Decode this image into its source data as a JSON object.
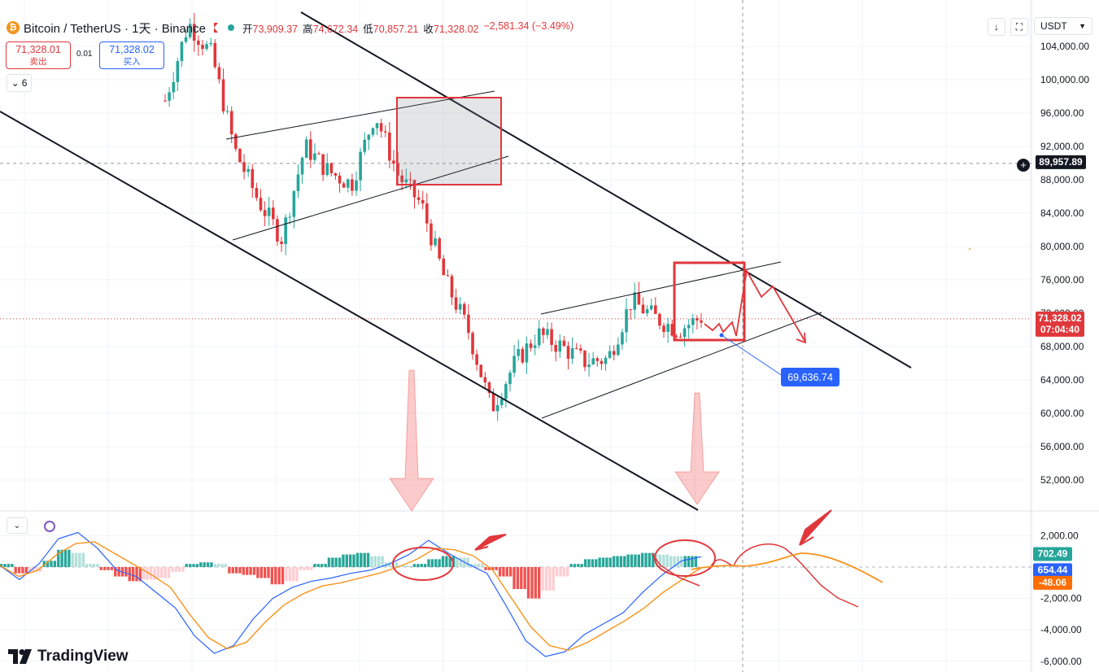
{
  "header": {
    "symbol": "Bitcoin / TetherUS · 1天 · Binance",
    "coin_glyph": "₿",
    "open_label": "开",
    "open": "73,909.37",
    "high_label": "高",
    "high": "74,672.34",
    "low_label": "低",
    "low": "70,857.21",
    "close_label": "收",
    "close": "71,328.02",
    "change": "−2,581.34 (−3.49%)"
  },
  "trade": {
    "sell_price": "71,328.01",
    "sell_label": "卖出",
    "spread": "0.01",
    "buy_price": "71,328.02",
    "buy_label": "买入"
  },
  "indicators_count": "6",
  "currency": "USDT",
  "brand": "TradingView",
  "colors": {
    "up": "#26a69a",
    "down": "#e0373b",
    "macd": "#2962ff",
    "signal": "#f7931a",
    "annotation": "#e0373b",
    "blue_label": "#2962ff"
  },
  "chart_data": [
    {
      "type": "candlestick",
      "pair": "BTC/USDT",
      "interval": "1D",
      "y_axis": {
        "ticks": [
          "104,000.00",
          "100,000.00",
          "96,000.00",
          "92,000.00",
          "88,000.00",
          "84,000.00",
          "80,000.00",
          "76,000.00",
          "72,000.00",
          "68,000.00",
          "64,000.00",
          "60,000.00",
          "56,000.00",
          "52,000.00"
        ],
        "range": [
          48400,
          107800
        ]
      },
      "crosshair_price": "89,957.89",
      "last_price": {
        "value": "71,328.02",
        "countdown": "07:04:40"
      },
      "callout_price": "69,636.74",
      "trend_path_values": [
        97500,
        106800,
        103000,
        91500,
        85500,
        81000,
        92000,
        89000,
        87500,
        96000,
        88500,
        85000,
        76000,
        70000,
        60500,
        66000,
        69500,
        68000,
        66200,
        66500,
        73500,
        71500,
        70000,
        71500
      ]
    },
    {
      "type": "bar",
      "indicator": "MACD",
      "y_axis": {
        "ticks": [
          "2,000.00",
          "-2,000.00",
          "-4,000.00",
          "-6,000.00"
        ],
        "range": [
          -6200,
          2800
        ]
      },
      "labels": {
        "histogram": "702.49",
        "macd": "654.44",
        "signal": "-48.06"
      },
      "histogram": [
        200,
        -400,
        -300,
        400,
        1100,
        900,
        200,
        -200,
        -600,
        -900,
        -800,
        -700,
        -300,
        200,
        300,
        200,
        -400,
        -500,
        -700,
        -1100,
        -900,
        -200,
        200,
        600,
        800,
        900,
        700,
        300,
        100,
        200,
        500,
        700,
        600,
        200,
        -200,
        -600,
        -1400,
        -2000,
        -1500,
        -600,
        200,
        500,
        600,
        700,
        800,
        900,
        800,
        700,
        702
      ],
      "macd": [
        100,
        -800,
        200,
        1800,
        2200,
        1200,
        -200,
        -600,
        -1600,
        -2600,
        -4400,
        -5500,
        -5000,
        -3300,
        -2000,
        -1300,
        -900,
        -700,
        -400,
        -200,
        200,
        800,
        1700,
        900,
        200,
        -400,
        -2500,
        -4700,
        -5700,
        -5400,
        -4300,
        -3600,
        -2900,
        -1600,
        -500,
        400,
        654
      ],
      "signal": [
        100,
        -600,
        -200,
        800,
        1500,
        1600,
        900,
        200,
        -500,
        -1300,
        -3000,
        -4500,
        -5200,
        -4800,
        -3500,
        -2400,
        -1700,
        -1200,
        -1000,
        -700,
        -400,
        0,
        500,
        1200,
        1100,
        700,
        -200,
        -2000,
        -3800,
        -5000,
        -5300,
        -4800,
        -4100,
        -3400,
        -2600,
        -1600,
        -800,
        -48
      ]
    }
  ]
}
